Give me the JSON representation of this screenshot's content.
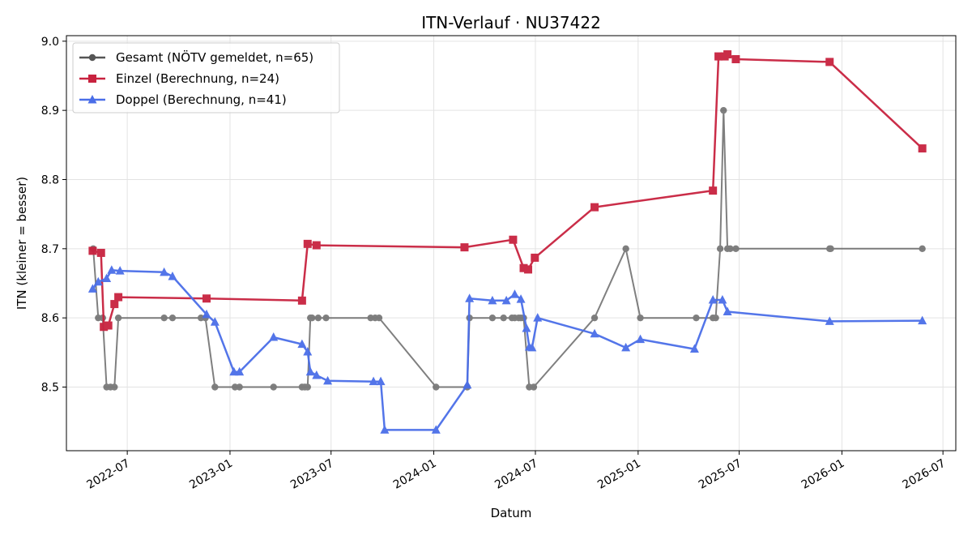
{
  "chart_data": {
    "type": "line",
    "title": "ITN-Verlauf · NU37422",
    "xlabel": "Datum",
    "ylabel": "ITN  (kleiner = besser)",
    "x_axis_type": "date",
    "xlim": [
      "2022-03-14",
      "2026-07-24"
    ],
    "ylim": [
      8.408,
      9.008
    ],
    "x_ticks": [
      "2022-07",
      "2023-01",
      "2023-07",
      "2024-01",
      "2024-07",
      "2025-01",
      "2025-07",
      "2026-01",
      "2026-07"
    ],
    "y_ticks": [
      "8.5",
      "8.6",
      "8.7",
      "8.8",
      "8.9",
      "9.0"
    ],
    "grid": true,
    "legend_position": "top-left",
    "series": [
      {
        "name": "Gesamt (NÖTV gemeldet, n=65)",
        "color": "#555555",
        "marker": "circle",
        "points": [
          [
            "2022-05-01",
            8.7
          ],
          [
            "2022-05-10",
            8.6
          ],
          [
            "2022-05-18",
            8.6
          ],
          [
            "2022-05-25",
            8.5
          ],
          [
            "2022-06-01",
            8.5
          ],
          [
            "2022-06-08",
            8.5
          ],
          [
            "2022-06-15",
            8.6
          ],
          [
            "2022-09-05",
            8.6
          ],
          [
            "2022-09-20",
            8.6
          ],
          [
            "2022-11-10",
            8.6
          ],
          [
            "2022-11-18",
            8.6
          ],
          [
            "2022-12-05",
            8.5
          ],
          [
            "2023-01-10",
            8.5
          ],
          [
            "2023-01-18",
            8.5
          ],
          [
            "2023-03-20",
            8.5
          ],
          [
            "2023-05-10",
            8.5
          ],
          [
            "2023-05-15",
            8.5
          ],
          [
            "2023-05-20",
            8.5
          ],
          [
            "2023-05-25",
            8.6
          ],
          [
            "2023-05-28",
            8.6
          ],
          [
            "2023-06-08",
            8.6
          ],
          [
            "2023-06-22",
            8.6
          ],
          [
            "2023-09-10",
            8.6
          ],
          [
            "2023-09-18",
            8.6
          ],
          [
            "2023-09-25",
            8.6
          ],
          [
            "2024-01-05",
            8.5
          ],
          [
            "2024-03-01",
            8.5
          ],
          [
            "2024-03-05",
            8.6
          ],
          [
            "2024-04-15",
            8.6
          ],
          [
            "2024-05-05",
            8.6
          ],
          [
            "2024-05-20",
            8.6
          ],
          [
            "2024-05-25",
            8.6
          ],
          [
            "2024-06-01",
            8.6
          ],
          [
            "2024-06-05",
            8.6
          ],
          [
            "2024-06-10",
            8.6
          ],
          [
            "2024-06-20",
            8.5
          ],
          [
            "2024-06-28",
            8.5
          ],
          [
            "2024-10-15",
            8.6
          ],
          [
            "2024-12-10",
            8.7
          ],
          [
            "2025-01-05",
            8.6
          ],
          [
            "2025-04-15",
            8.6
          ],
          [
            "2025-05-15",
            8.6
          ],
          [
            "2025-05-20",
            8.6
          ],
          [
            "2025-05-28",
            8.7
          ],
          [
            "2025-06-03",
            8.9
          ],
          [
            "2025-06-10",
            8.7
          ],
          [
            "2025-06-15",
            8.7
          ],
          [
            "2025-06-25",
            8.7
          ],
          [
            "2025-12-10",
            8.7
          ],
          [
            "2025-12-12",
            8.7
          ],
          [
            "2026-05-25",
            8.7
          ]
        ]
      },
      {
        "name": "Einzel (Berechnung, n=24)",
        "color": "#c8223f",
        "marker": "square",
        "points": [
          [
            "2022-04-30",
            8.697
          ],
          [
            "2022-05-15",
            8.694
          ],
          [
            "2022-05-20",
            8.587
          ],
          [
            "2022-05-28",
            8.589
          ],
          [
            "2022-06-08",
            8.62
          ],
          [
            "2022-06-15",
            8.63
          ],
          [
            "2022-11-20",
            8.628
          ],
          [
            "2023-05-10",
            8.625
          ],
          [
            "2023-05-20",
            8.707
          ],
          [
            "2023-06-05",
            8.705
          ],
          [
            "2024-02-25",
            8.702
          ],
          [
            "2024-05-22",
            8.713
          ],
          [
            "2024-06-10",
            8.672
          ],
          [
            "2024-06-18",
            8.67
          ],
          [
            "2024-06-30",
            8.687
          ],
          [
            "2024-10-15",
            8.76
          ],
          [
            "2025-05-15",
            8.784
          ],
          [
            "2025-05-25",
            8.978
          ],
          [
            "2025-06-05",
            8.978
          ],
          [
            "2025-06-10",
            8.981
          ],
          [
            "2025-06-25",
            8.974
          ],
          [
            "2025-12-10",
            8.97
          ],
          [
            "2026-05-25",
            8.845
          ]
        ]
      },
      {
        "name": "Doppel (Berechnung, n=41)",
        "color": "#4a6ee8",
        "marker": "triangle",
        "points": [
          [
            "2022-04-30",
            8.642
          ],
          [
            "2022-05-10",
            8.652
          ],
          [
            "2022-05-25",
            8.657
          ],
          [
            "2022-06-03",
            8.669
          ],
          [
            "2022-06-18",
            8.668
          ],
          [
            "2022-09-05",
            8.666
          ],
          [
            "2022-09-20",
            8.66
          ],
          [
            "2022-11-20",
            8.605
          ],
          [
            "2022-12-05",
            8.594
          ],
          [
            "2023-01-08",
            8.522
          ],
          [
            "2023-01-18",
            8.522
          ],
          [
            "2023-03-20",
            8.572
          ],
          [
            "2023-05-10",
            8.562
          ],
          [
            "2023-05-20",
            8.551
          ],
          [
            "2023-05-25",
            8.522
          ],
          [
            "2023-06-05",
            8.517
          ],
          [
            "2023-06-25",
            8.509
          ],
          [
            "2023-09-15",
            8.508
          ],
          [
            "2023-09-28",
            8.508
          ],
          [
            "2023-10-05",
            8.438
          ],
          [
            "2024-01-05",
            8.438
          ],
          [
            "2024-03-01",
            8.503
          ],
          [
            "2024-03-05",
            8.628
          ],
          [
            "2024-04-15",
            8.625
          ],
          [
            "2024-05-10",
            8.625
          ],
          [
            "2024-05-25",
            8.634
          ],
          [
            "2024-06-05",
            8.627
          ],
          [
            "2024-06-15",
            8.585
          ],
          [
            "2024-06-20",
            8.558
          ],
          [
            "2024-06-25",
            8.557
          ],
          [
            "2024-07-05",
            8.6
          ],
          [
            "2024-10-15",
            8.577
          ],
          [
            "2024-12-10",
            8.557
          ],
          [
            "2025-01-05",
            8.569
          ],
          [
            "2025-04-12",
            8.555
          ],
          [
            "2025-05-15",
            8.626
          ],
          [
            "2025-06-01",
            8.626
          ],
          [
            "2025-06-10",
            8.609
          ],
          [
            "2025-12-10",
            8.595
          ],
          [
            "2026-05-25",
            8.596
          ]
        ]
      }
    ]
  }
}
